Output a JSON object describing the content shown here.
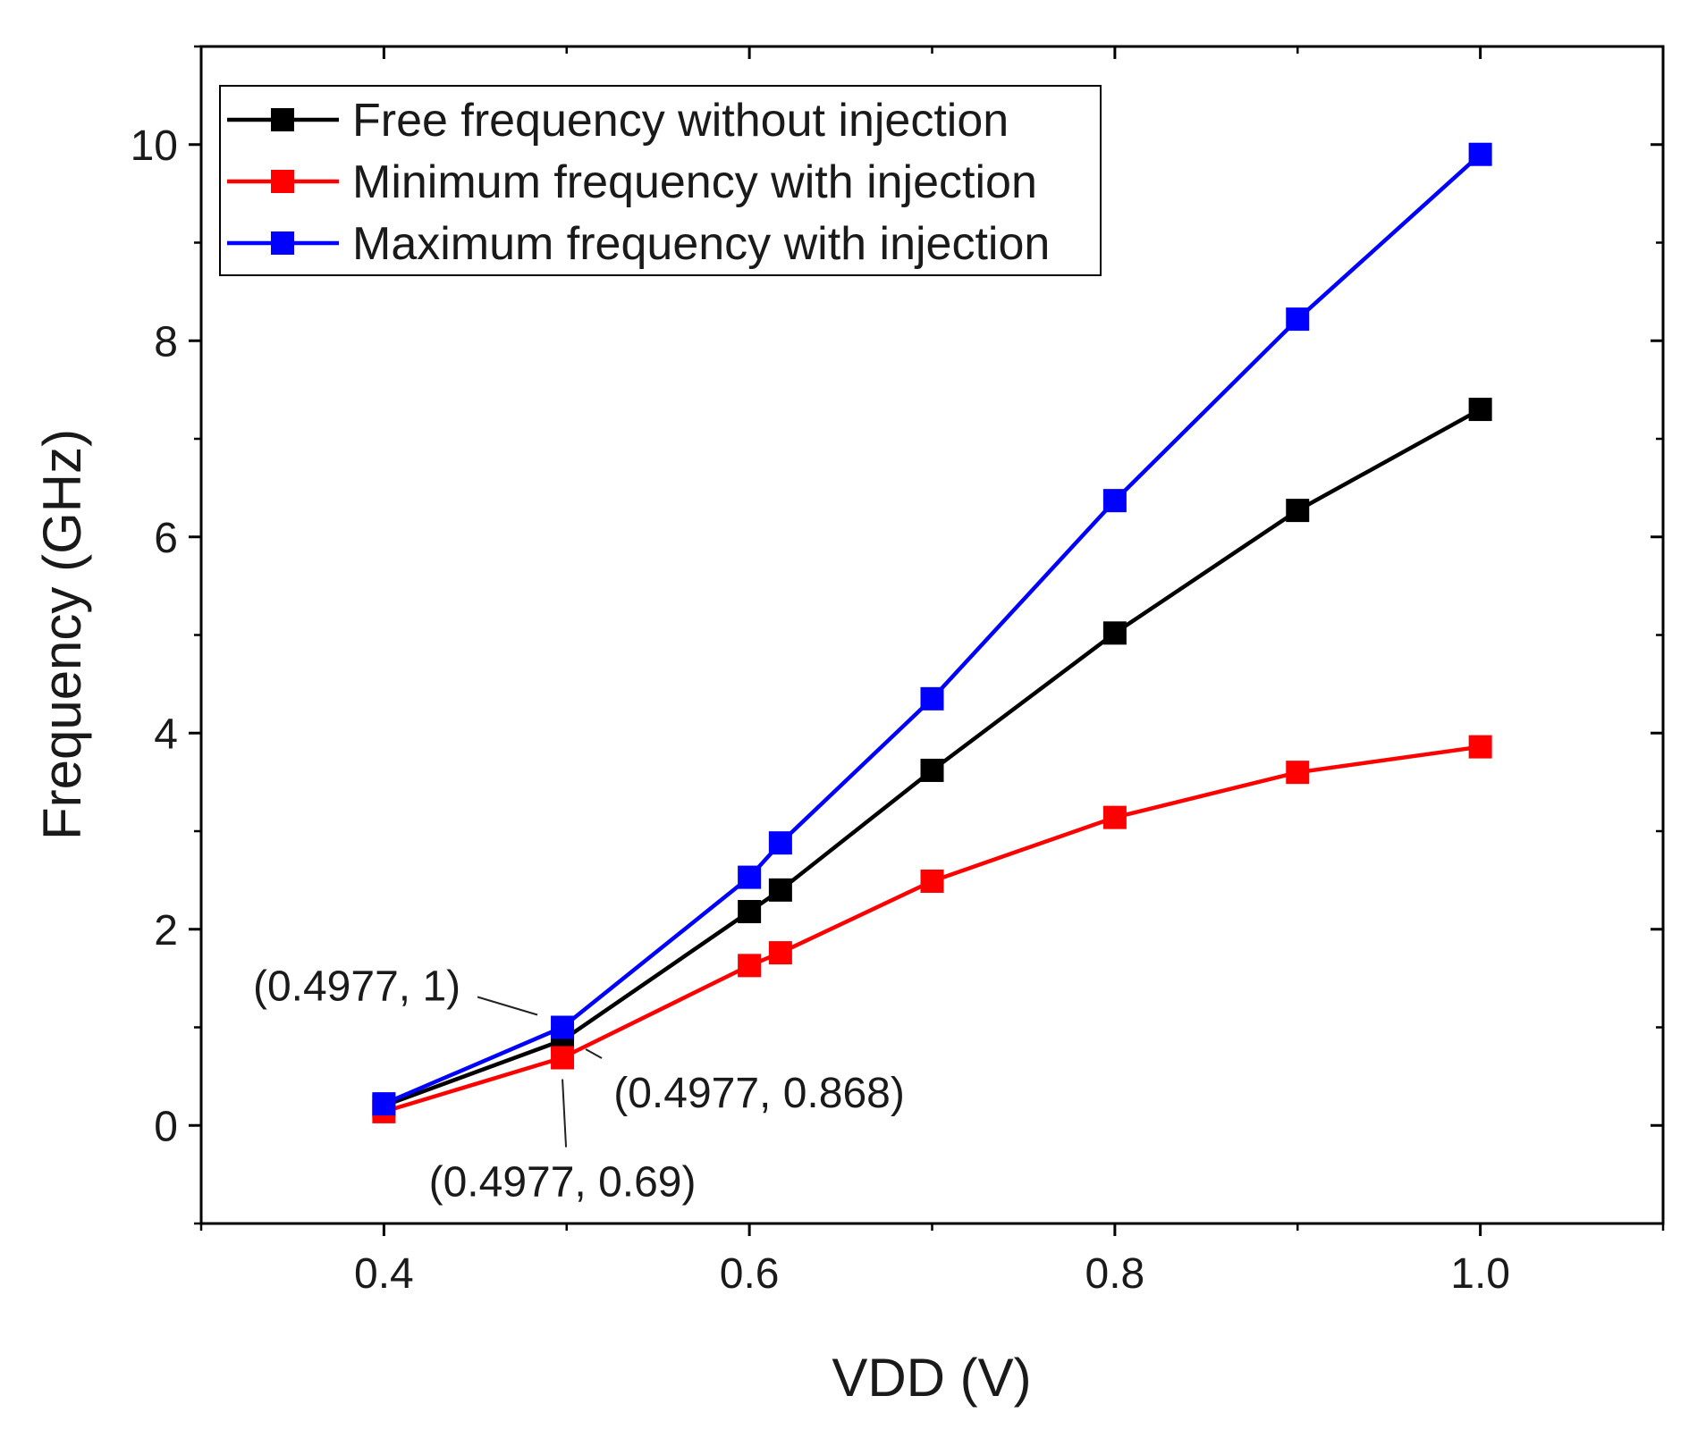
{
  "chart_data": {
    "type": "line",
    "title": "",
    "xlabel": "VDD (V)",
    "ylabel": "Frequency (GHz)",
    "xlim": [
      0.3,
      1.1
    ],
    "ylim": [
      -1,
      11
    ],
    "x_ticks": [
      0.4,
      0.6,
      0.8,
      1.0
    ],
    "x_tick_labels": [
      "0.4",
      "0.6",
      "0.8",
      "1.0"
    ],
    "y_ticks": [
      0,
      2,
      4,
      6,
      8,
      10
    ],
    "y_tick_labels": [
      "0",
      "2",
      "4",
      "6",
      "8",
      "10"
    ],
    "grid": false,
    "legend_position": "top-left",
    "series": [
      {
        "name": "Free frequency without injection",
        "color": "#000000",
        "marker": "square",
        "x": [
          0.4,
          0.4977,
          0.6,
          0.617,
          0.7,
          0.8,
          0.9,
          1.0
        ],
        "y": [
          0.2,
          0.868,
          2.18,
          2.4,
          3.62,
          5.02,
          6.27,
          7.3
        ]
      },
      {
        "name": "Minimum frequency with injection",
        "color": "#ff0000",
        "marker": "square",
        "x": [
          0.4,
          0.4977,
          0.6,
          0.617,
          0.7,
          0.8,
          0.9,
          1.0
        ],
        "y": [
          0.14,
          0.69,
          1.63,
          1.76,
          2.49,
          3.14,
          3.6,
          3.86
        ]
      },
      {
        "name": "Maximum frequency with injection",
        "color": "#0000ff",
        "marker": "square",
        "x": [
          0.4,
          0.4977,
          0.6,
          0.617,
          0.7,
          0.8,
          0.9,
          1.0
        ],
        "y": [
          0.22,
          1.0,
          2.53,
          2.88,
          4.35,
          6.37,
          8.22,
          9.9
        ]
      }
    ],
    "annotations": [
      {
        "text": "(0.4977, 1)",
        "x": 0.4977,
        "y": 1.0,
        "placement": "upper-left"
      },
      {
        "text": "(0.4977, 0.868)",
        "x": 0.4977,
        "y": 0.868,
        "placement": "lower-right"
      },
      {
        "text": "(0.4977, 0.69)",
        "x": 0.4977,
        "y": 0.69,
        "placement": "below"
      }
    ]
  }
}
